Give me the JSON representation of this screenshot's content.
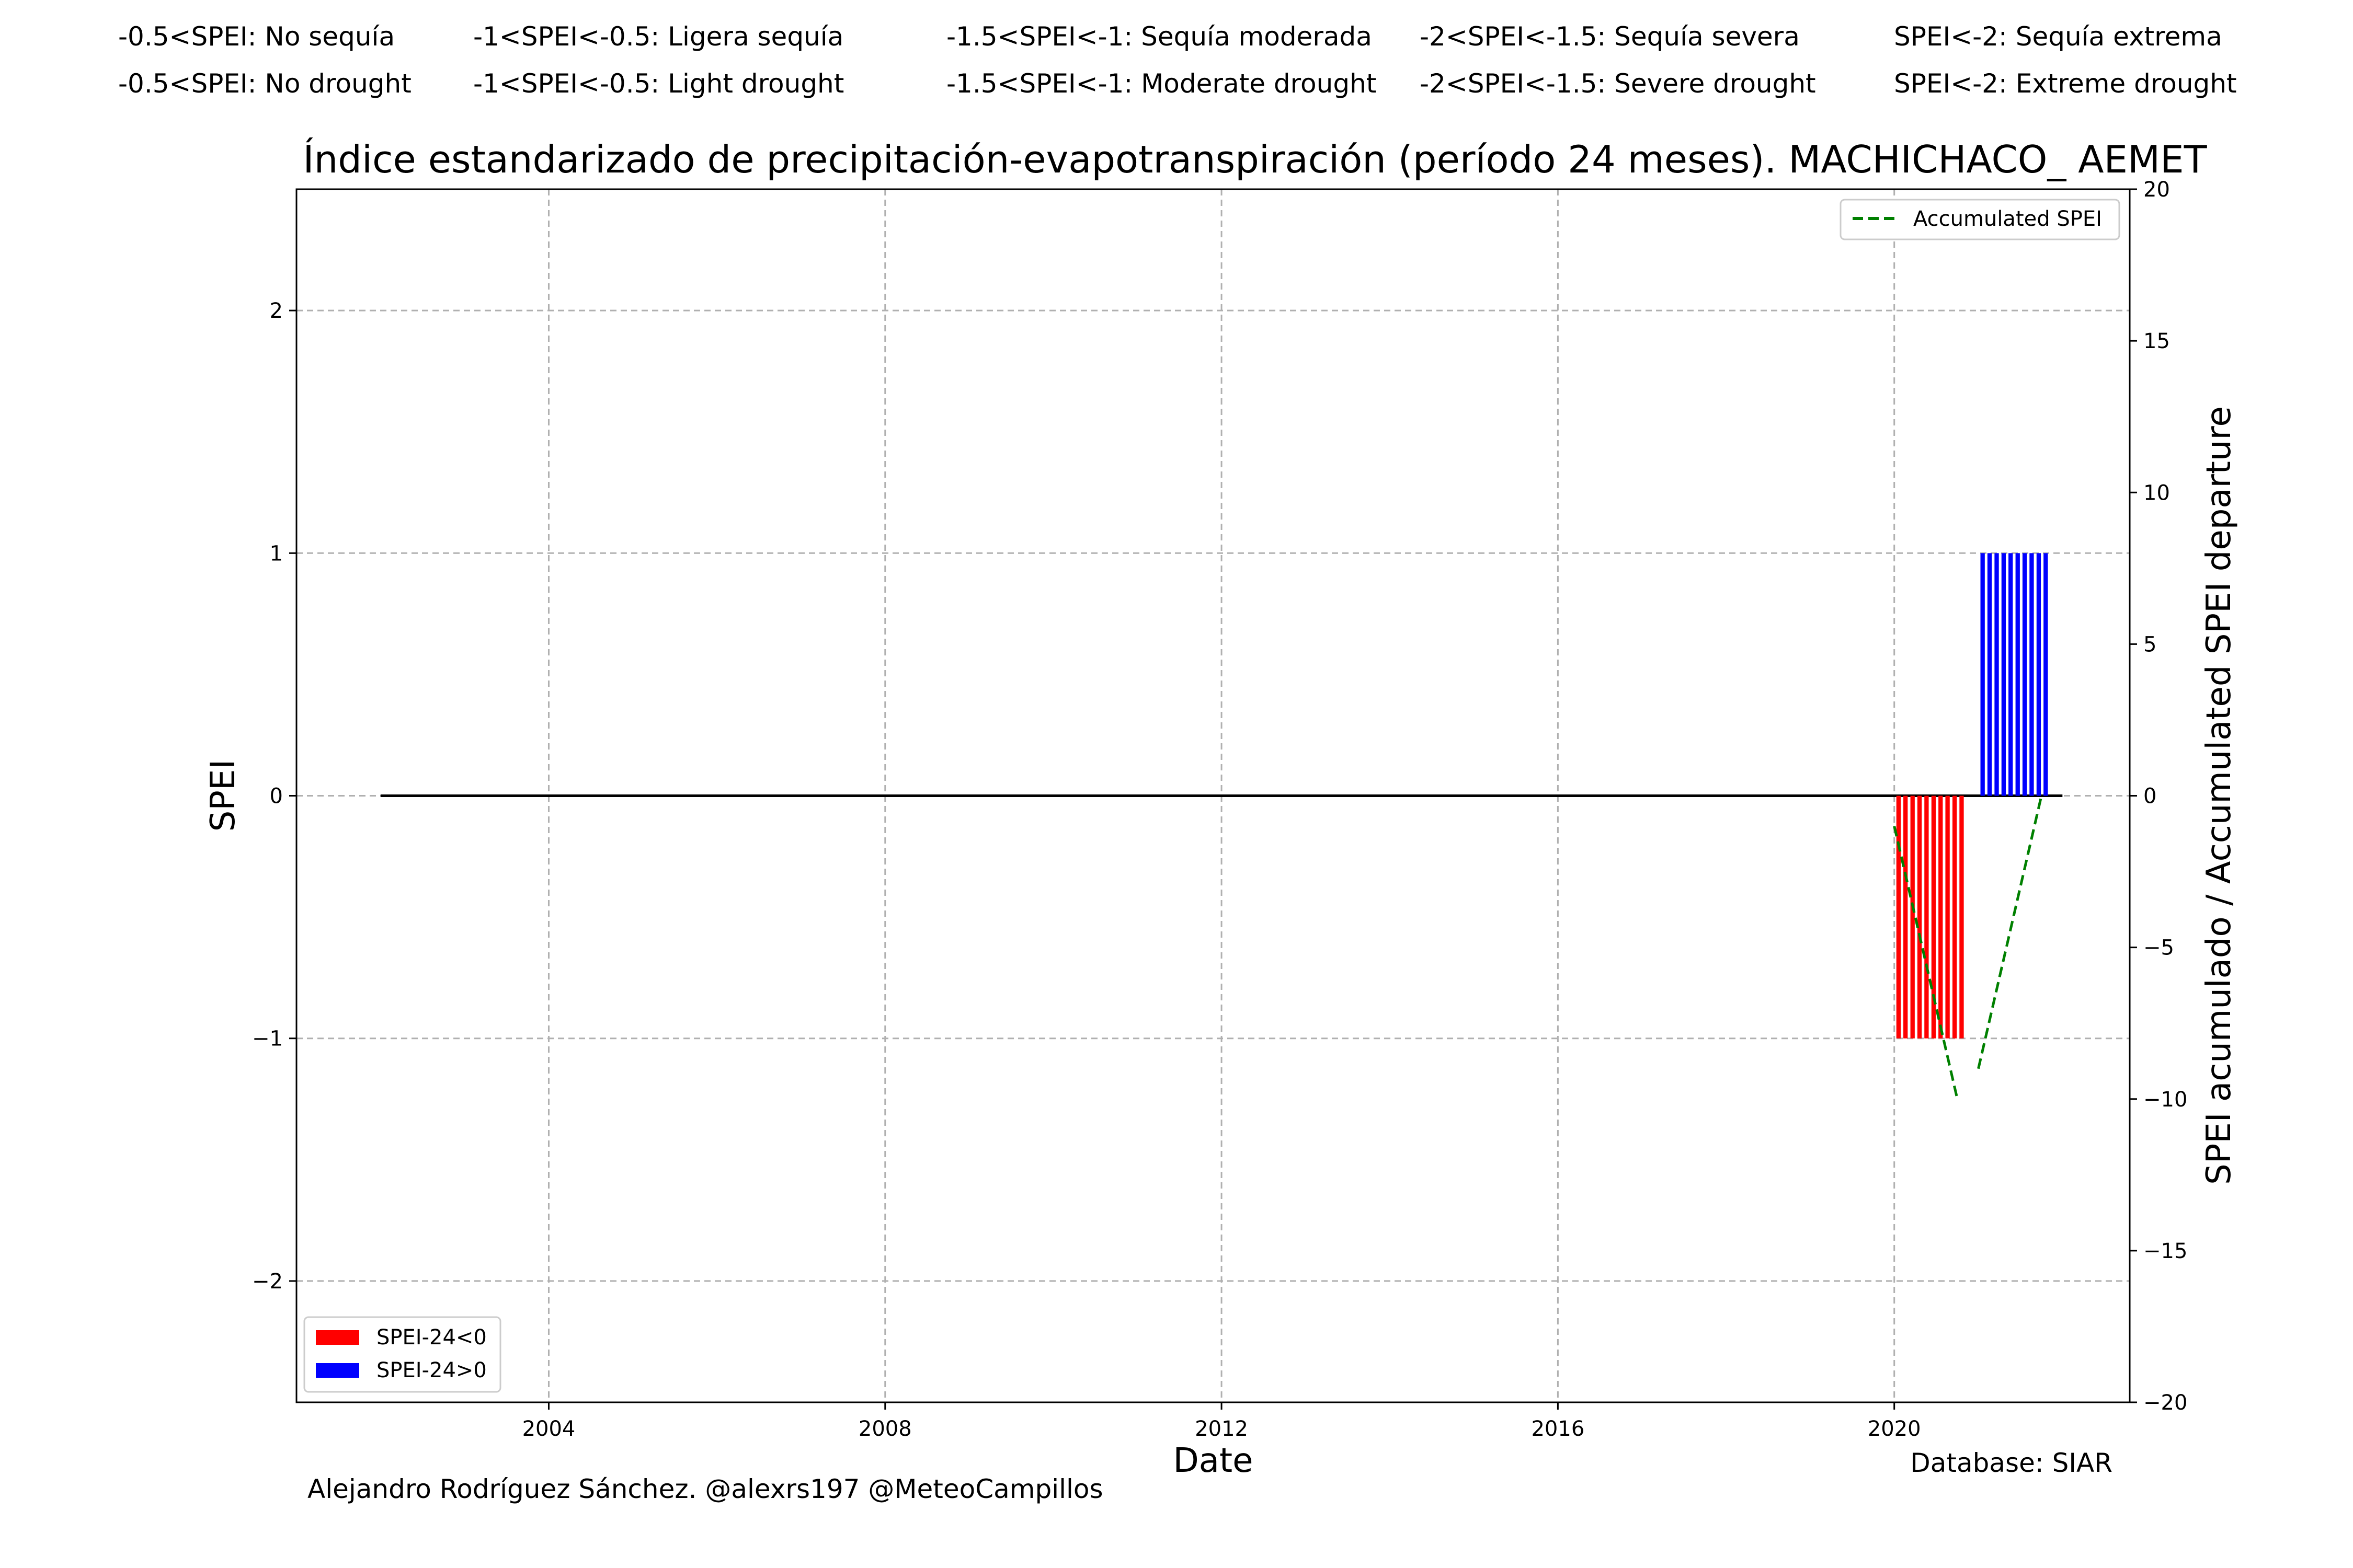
{
  "header": {
    "spanish": [
      "-0.5<SPEI: No sequía",
      "-1<SPEI<-0.5: Ligera sequía",
      "-1.5<SPEI<-1: Sequía moderada",
      "-2<SPEI<-1.5: Sequía severa",
      "SPEI<-2: Sequía extrema"
    ],
    "english": [
      "-0.5<SPEI: No drought",
      "-1<SPEI<-0.5: Light drought",
      "-1.5<SPEI<-1: Moderate drought",
      "-2<SPEI<-1.5: Severe drought",
      "SPEI<-2: Extreme drought"
    ]
  },
  "footer": {
    "author": "Alejandro Rodríguez Sánchez. @alexrs197 @MeteoCampillos",
    "database": "Database: SIAR"
  },
  "chart_data": {
    "type": "bar",
    "title": "Índice estandarizado de precipitación-evapotranspiración (período 24 meses). MACHICHACO_ AEMET",
    "xlabel": "Date",
    "ylabel": "SPEI",
    "y2label": "SPEI acumulado / Accumulated SPEI departure",
    "xlim": [
      2001.0,
      2022.8
    ],
    "ylim": [
      -2.5,
      2.5
    ],
    "y2lim": [
      -20,
      20
    ],
    "x_ticks": [
      2004,
      2008,
      2012,
      2016,
      2020
    ],
    "y_ticks": [
      -2,
      -1,
      0,
      1,
      2
    ],
    "y2_ticks": [
      -20,
      -15,
      -10,
      -5,
      0,
      5,
      10,
      15,
      20
    ],
    "grid": true,
    "zero_line": {
      "x": [
        2002.0,
        2022.0
      ],
      "y": 0
    },
    "colors": {
      "negative": "#ff0000",
      "positive": "#0000ff",
      "accumulated": "#008000",
      "grid": "#b0b0b0",
      "zero_line": "#000000"
    },
    "series": [
      {
        "name": "SPEI-24<0",
        "color": "#ff0000",
        "x": [
          2020.0,
          2020.083,
          2020.167,
          2020.25,
          2020.333,
          2020.417,
          2020.5,
          2020.583,
          2020.667,
          2020.75
        ],
        "values": [
          -1,
          -1,
          -1,
          -1,
          -1,
          -1,
          -1,
          -1,
          -1,
          -1
        ]
      },
      {
        "name": "SPEI-24>0",
        "color": "#0000ff",
        "x": [
          2021.0,
          2021.083,
          2021.167,
          2021.25,
          2021.333,
          2021.417,
          2021.5,
          2021.583,
          2021.667,
          2021.75
        ],
        "values": [
          1,
          1,
          1,
          1,
          1,
          1,
          1,
          1,
          1,
          1
        ]
      }
    ],
    "accumulated": {
      "name": "Accumulated SPEI",
      "segments": [
        {
          "x": [
            2020.0,
            2020.75
          ],
          "y": [
            -1,
            -10
          ]
        },
        {
          "x": [
            2021.0,
            2021.75
          ],
          "y": [
            -9,
            0
          ]
        }
      ]
    },
    "legends": {
      "bars": {
        "placement": "lower-left",
        "items": [
          "SPEI-24<0",
          "SPEI-24>0"
        ]
      },
      "line": {
        "placement": "upper-right",
        "items": [
          "Accumulated SPEI"
        ]
      }
    }
  }
}
